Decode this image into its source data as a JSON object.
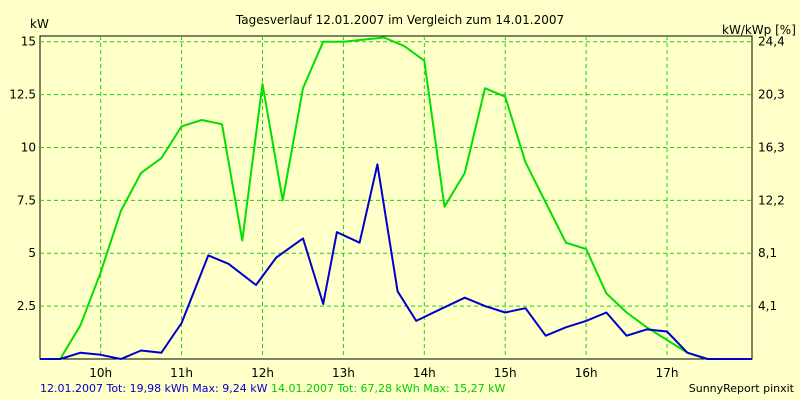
{
  "chart_data": {
    "type": "line",
    "title": "Tagesverlauf 12.01.2007 im Vergleich zum 14.01.2007",
    "ylabel": "kW",
    "ylabel_right": "kW/kWp [%]",
    "ylim": [
      0,
      15.27
    ],
    "yticks": [
      2.5,
      5,
      7.5,
      10,
      12.5,
      15
    ],
    "ytick_labels": [
      "2.5",
      "5",
      "7.5",
      "10",
      "12.5",
      "15"
    ],
    "yticks_right_labels": [
      "4,1",
      "8,1",
      "12,2",
      "16,3",
      "20,3",
      "24,4"
    ],
    "xlim": [
      9.25,
      18.05
    ],
    "xticks": [
      10,
      11,
      12,
      13,
      14,
      15,
      16,
      17
    ],
    "xtick_labels": [
      "10h",
      "11h",
      "12h",
      "13h",
      "14h",
      "15h",
      "16h",
      "17h"
    ],
    "grid": true,
    "series": [
      {
        "name": "12.01.2007",
        "color": "#0000cc",
        "x": [
          9.25,
          9.5,
          9.75,
          10.0,
          10.25,
          10.5,
          10.75,
          11.0,
          11.33,
          11.58,
          11.92,
          12.17,
          12.5,
          12.75,
          12.92,
          13.2,
          13.42,
          13.67,
          13.9,
          14.17,
          14.5,
          14.75,
          15.0,
          15.25,
          15.5,
          15.75,
          16.0,
          16.25,
          16.5,
          16.75,
          17.0,
          17.25,
          17.5,
          17.75,
          18.05
        ],
        "values": [
          0,
          0,
          0.3,
          0.2,
          0,
          0.4,
          0.3,
          1.7,
          4.9,
          4.5,
          3.5,
          4.8,
          5.7,
          2.6,
          6.0,
          5.5,
          9.2,
          3.2,
          1.8,
          2.3,
          2.9,
          2.5,
          2.2,
          2.4,
          1.1,
          1.5,
          1.8,
          2.2,
          1.1,
          1.4,
          1.3,
          0.3,
          0,
          0,
          0
        ]
      },
      {
        "name": "14.01.2007",
        "color": "#00e000",
        "x": [
          9.25,
          9.5,
          9.75,
          10.0,
          10.25,
          10.5,
          10.75,
          11.0,
          11.25,
          11.5,
          11.75,
          12.0,
          12.25,
          12.5,
          12.75,
          13.0,
          13.25,
          13.5,
          13.75,
          14.0,
          14.25,
          14.5,
          14.75,
          15.0,
          15.25,
          15.5,
          15.75,
          16.0,
          16.25,
          16.5,
          16.75,
          17.0,
          17.25,
          17.5,
          17.75,
          18.05
        ],
        "values": [
          0,
          0,
          1.6,
          4.1,
          7.0,
          8.8,
          9.5,
          11.0,
          11.3,
          11.1,
          5.6,
          13.0,
          7.5,
          12.8,
          15.0,
          15.0,
          15.1,
          15.2,
          14.8,
          14.1,
          7.2,
          8.8,
          12.8,
          12.4,
          9.3,
          7.4,
          5.5,
          5.2,
          3.1,
          2.2,
          1.5,
          0.9,
          0.3,
          0,
          0,
          0
        ]
      }
    ],
    "legend": [
      {
        "label": "12.01.2007 Tot: 19,98 kWh Max: 9,24 kW",
        "color": "#0000cc"
      },
      {
        "label": "14.01.2007 Tot: 67,28 kWh Max: 15,27 kW",
        "color": "#00e000"
      }
    ],
    "credit": "SunnyReport pinxit"
  }
}
